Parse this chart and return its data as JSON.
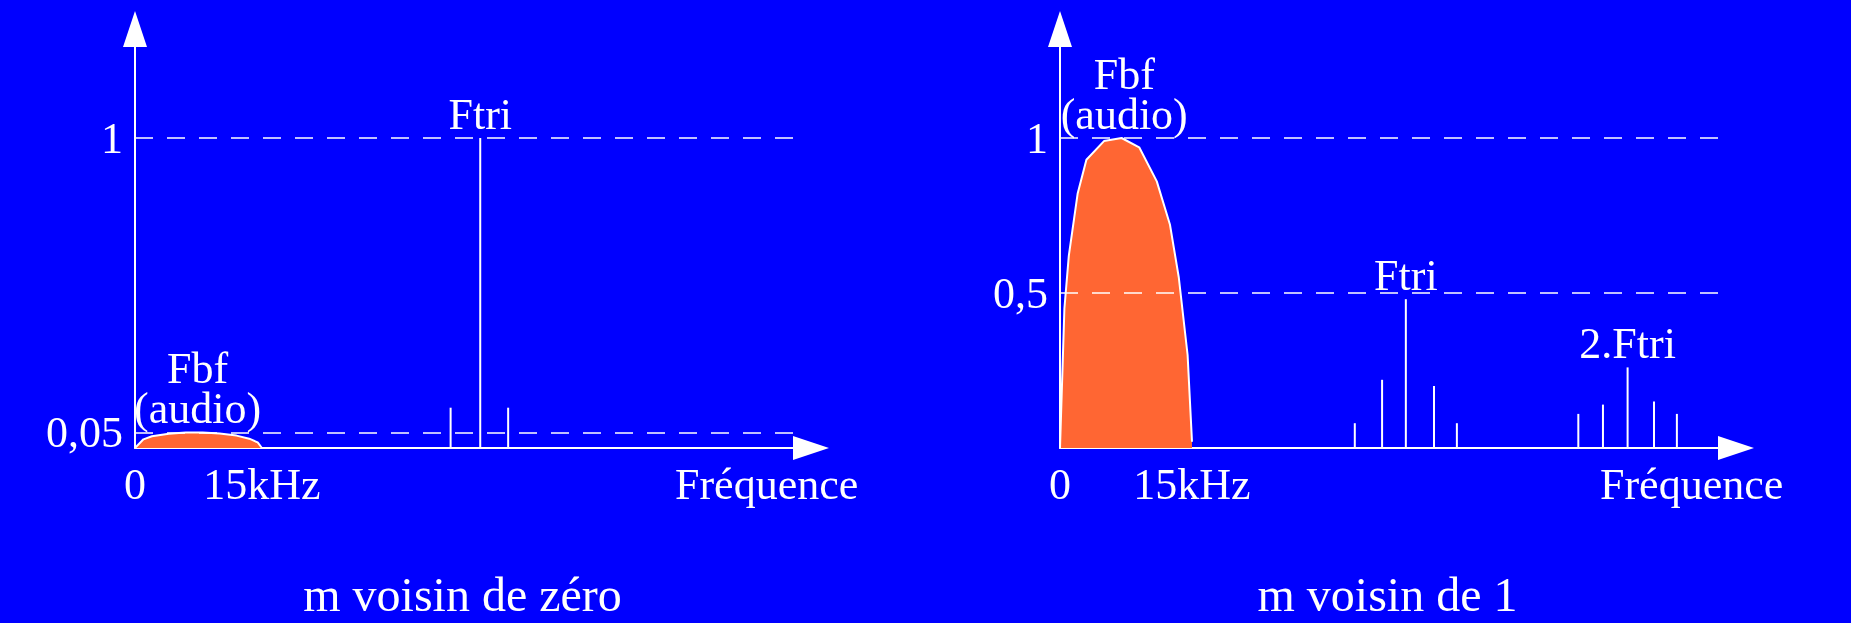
{
  "chart_data": [
    {
      "type": "bar",
      "title": "m voisin de zéro",
      "xlabel": "Fréquence",
      "xlim": [
        0,
        78
      ],
      "xticks": [
        0,
        {
          "value": 15,
          "label": "15kHz"
        }
      ],
      "ylim": [
        0,
        1.3
      ],
      "yticks": [
        {
          "value": 0.05,
          "label": "0,05"
        },
        1
      ],
      "grid": false,
      "marker": "none",
      "series": [
        {
          "type": "area",
          "color": "#ff6633",
          "x": [
            0,
            1,
            2,
            4,
            6,
            8,
            10,
            12,
            13.5,
            14.5,
            15
          ],
          "values": [
            0,
            0.028,
            0.038,
            0.046,
            0.05,
            0.05,
            0.047,
            0.04,
            0.03,
            0.018,
            0
          ]
        },
        {
          "color": "#ffffff",
          "x": [
            37.3,
            40.8,
            44.1
          ],
          "values": [
            0.13,
            1,
            0.13
          ]
        }
      ],
      "ref_lines": [
        {
          "axis": "y",
          "value": 1,
          "line_style": "dashed"
        },
        {
          "axis": "y",
          "value": 0.05,
          "line_style": "dashed"
        }
      ],
      "annotations": [
        {
          "text": "Ftri",
          "x": 40.8,
          "y": 1
        },
        {
          "text": "Fbf\n(audio)",
          "x": 7.4,
          "y": 0.05
        }
      ]
    },
    {
      "type": "bar",
      "title": "m voisin de 1",
      "xlabel": "Fréquence",
      "xlim": [
        0,
        75
      ],
      "xticks": [
        0,
        {
          "value": 15,
          "label": "15kHz"
        }
      ],
      "ylim": [
        0,
        1.3
      ],
      "yticks": [
        {
          "value": 0.5,
          "label": "0,5"
        },
        1
      ],
      "grid": false,
      "marker": "none",
      "series": [
        {
          "type": "area",
          "color": "#ff6633",
          "x": [
            0,
            0.5,
            1,
            2,
            3,
            5,
            7,
            9,
            11,
            12.5,
            13.5,
            14.5,
            15
          ],
          "values": [
            0,
            0.45,
            0.62,
            0.82,
            0.93,
            0.99,
            1,
            0.97,
            0.86,
            0.72,
            0.55,
            0.3,
            0.02
          ]
        },
        {
          "color": "#ffffff",
          "x": [
            33.5,
            36.6,
            39.3,
            42.5,
            45.1,
            58.9,
            61.7,
            64.5,
            67.5,
            70.1
          ],
          "values": [
            0.08,
            0.22,
            0.48,
            0.2,
            0.08,
            0.11,
            0.14,
            0.26,
            0.15,
            0.11
          ]
        }
      ],
      "ref_lines": [
        {
          "axis": "y",
          "value": 1,
          "line_style": "dashed"
        },
        {
          "axis": "y",
          "value": 0.5,
          "line_style": "dashed"
        }
      ],
      "annotations": [
        {
          "text": "Fbf\n(audio)",
          "x": 7.3,
          "y": 1
        },
        {
          "text": "Ftri",
          "x": 39.3,
          "y": 0.48
        },
        {
          "text": "2.Ftri",
          "x": 64.5,
          "y": 0.26
        }
      ]
    }
  ]
}
